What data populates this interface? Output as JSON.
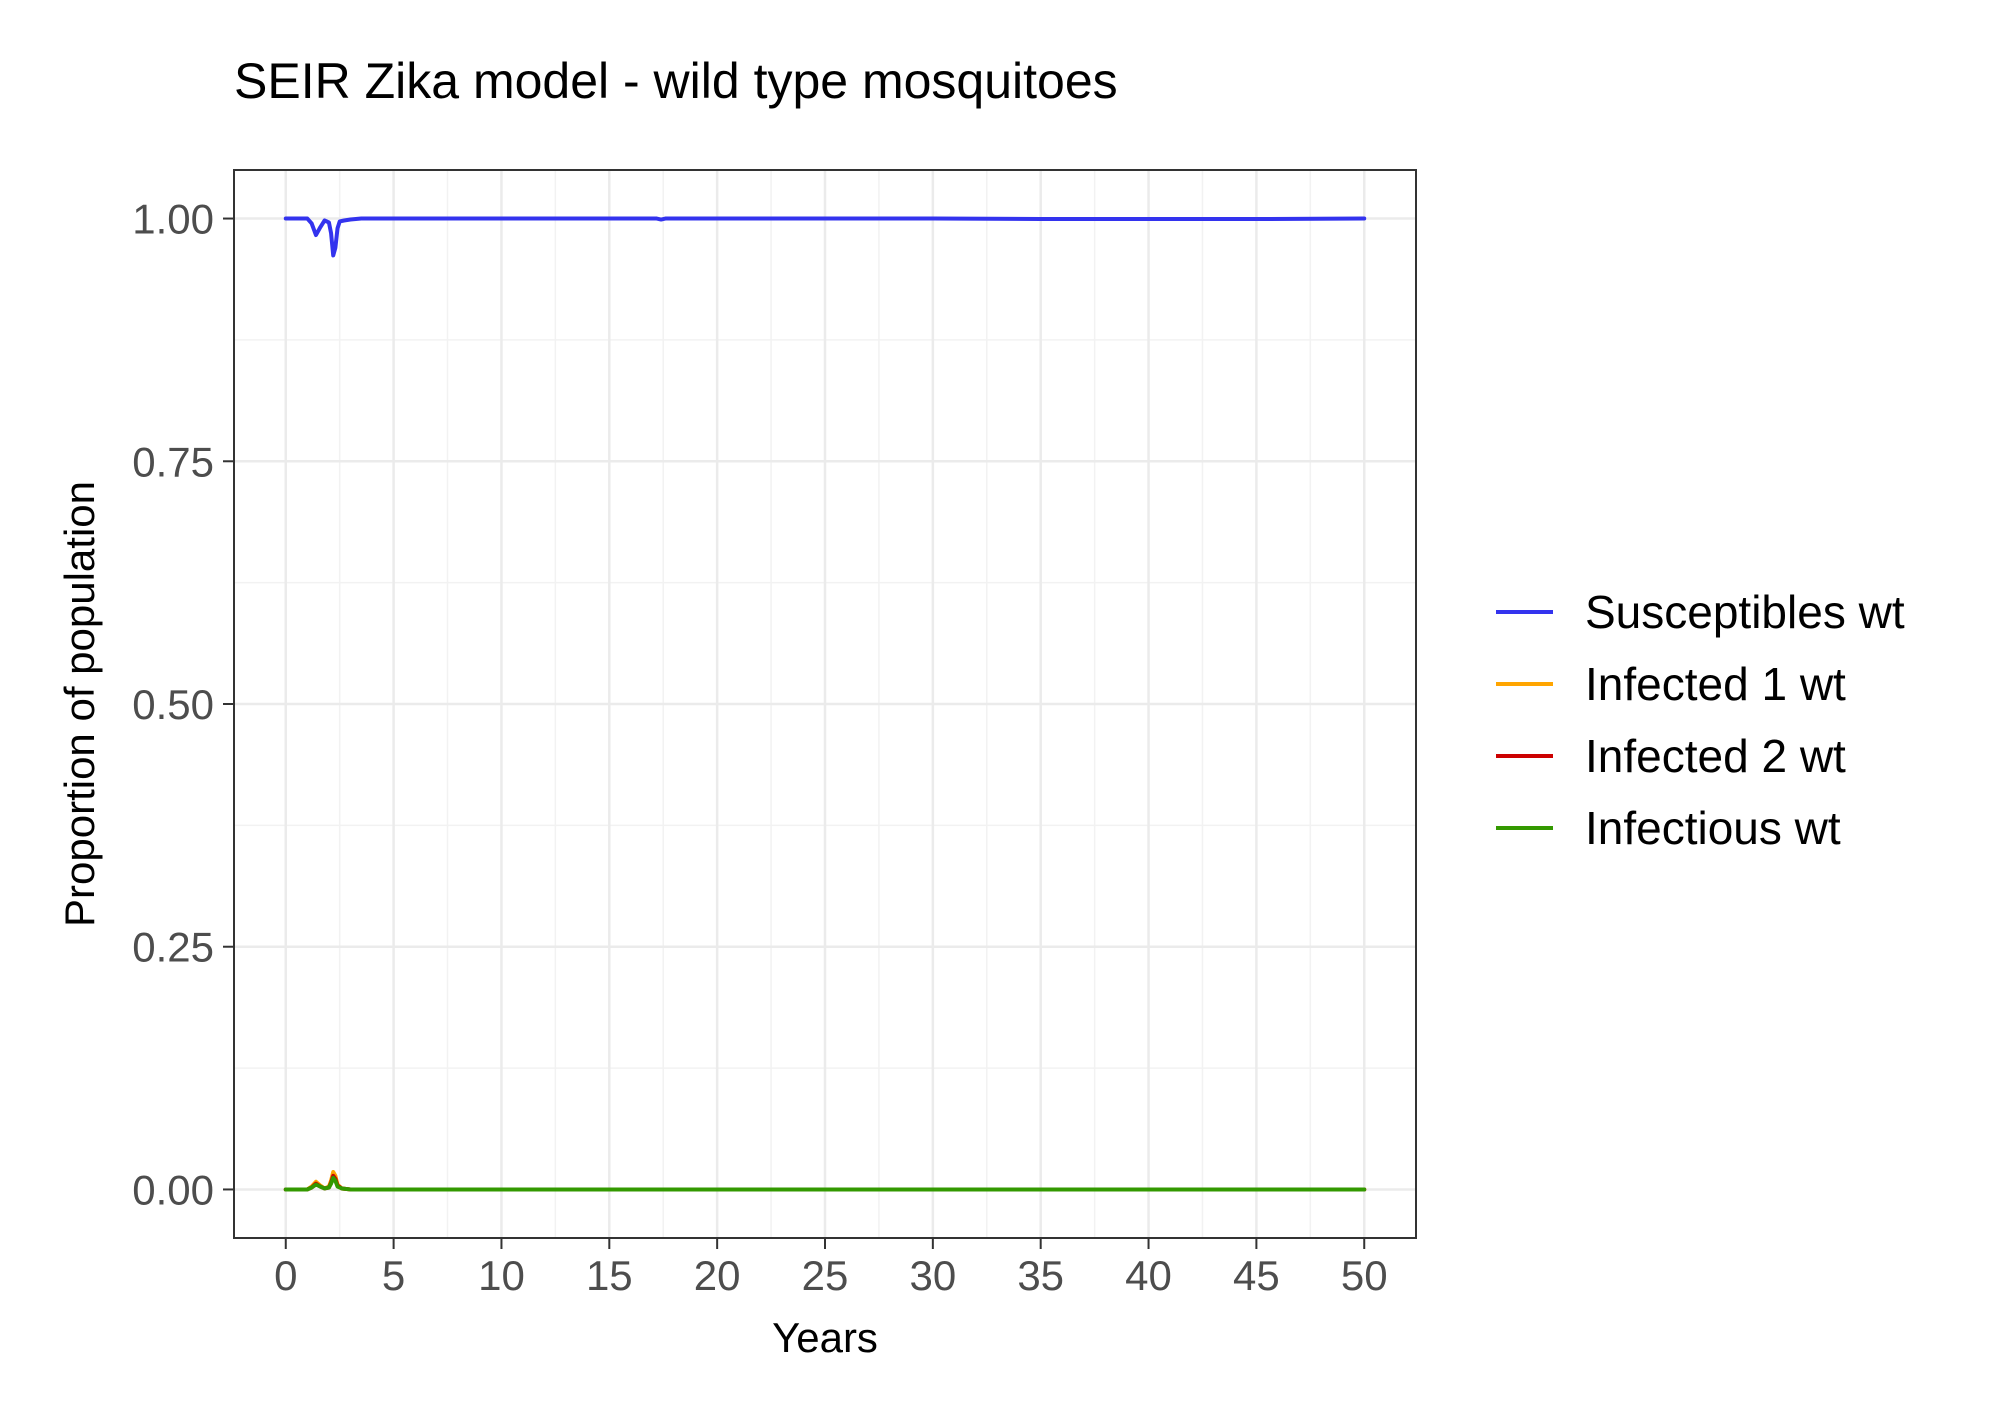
{
  "chart_data": {
    "type": "line",
    "title": "SEIR Zika model - wild type mosquitoes",
    "xlabel": "Years",
    "ylabel": "Proportion of population",
    "xlim": [
      -2.4,
      52.4
    ],
    "ylim": [
      -0.05,
      1.05
    ],
    "x_ticks": [
      0,
      5,
      10,
      15,
      20,
      25,
      30,
      35,
      40,
      45,
      50
    ],
    "x_tick_labels": [
      "0",
      "5",
      "10",
      "15",
      "20",
      "25",
      "30",
      "35",
      "40",
      "45",
      "50"
    ],
    "y_ticks": [
      0,
      0.25,
      0.5,
      0.75,
      1
    ],
    "y_tick_labels": [
      "0.00",
      "0.25",
      "0.50",
      "0.75",
      "1.00"
    ],
    "grid": true,
    "legend_position": "right",
    "series": [
      {
        "name": "Susceptibles wt",
        "color": "#3333ee",
        "x": [
          0,
          1.0,
          1.2,
          1.4,
          1.6,
          1.8,
          2.0,
          2.1,
          2.2,
          2.3,
          2.4,
          2.5,
          2.7,
          3.0,
          3.5,
          5,
          17.2,
          17.4,
          17.6,
          30,
          35,
          40,
          45,
          50
        ],
        "y": [
          1.0,
          1.0,
          0.995,
          0.983,
          0.991,
          0.998,
          0.996,
          0.985,
          0.962,
          0.97,
          0.99,
          0.997,
          0.998,
          0.999,
          1.0,
          1.0,
          1.0,
          0.999,
          1.0,
          1.0,
          0.9995,
          0.9995,
          0.9995,
          1.0
        ]
      },
      {
        "name": "Infected 1 wt",
        "color": "#ffa500",
        "x": [
          0,
          1.0,
          1.2,
          1.4,
          1.6,
          1.8,
          2.0,
          2.1,
          2.2,
          2.3,
          2.4,
          2.6,
          3.0,
          50
        ],
        "y": [
          0,
          0,
          0.003,
          0.008,
          0.004,
          0.001,
          0.003,
          0.009,
          0.018,
          0.014,
          0.005,
          0.001,
          0,
          0
        ]
      },
      {
        "name": "Infected 2 wt",
        "color": "#cc0000",
        "x": [
          0,
          1.0,
          1.2,
          1.4,
          1.6,
          1.8,
          2.0,
          2.1,
          2.2,
          2.3,
          2.4,
          2.6,
          3.0,
          50
        ],
        "y": [
          0,
          0,
          0.002,
          0.006,
          0.003,
          0.001,
          0.002,
          0.007,
          0.014,
          0.011,
          0.004,
          0.001,
          0,
          0
        ]
      },
      {
        "name": "Infectious wt",
        "color": "#339900",
        "x": [
          0,
          1.0,
          1.2,
          1.4,
          1.6,
          1.8,
          2.0,
          2.1,
          2.2,
          2.3,
          2.4,
          2.6,
          3.0,
          50
        ],
        "y": [
          0,
          0,
          0.002,
          0.005,
          0.003,
          0.001,
          0.002,
          0.006,
          0.012,
          0.009,
          0.003,
          0.001,
          0,
          0
        ]
      }
    ]
  }
}
